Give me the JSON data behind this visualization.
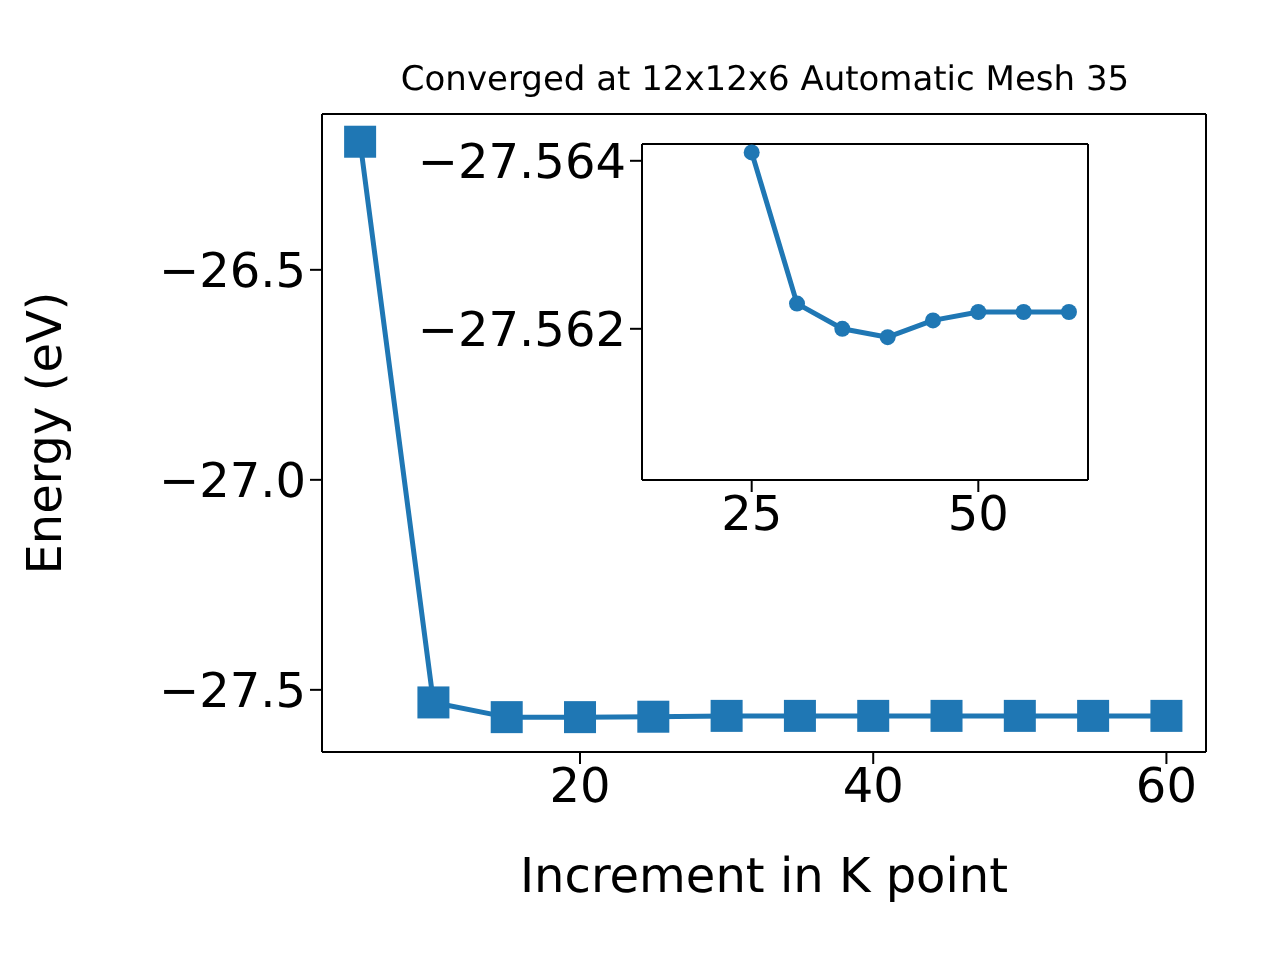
{
  "chart_data": [
    {
      "type": "line",
      "title": "Converged at 12x12x6 Automatic Mesh 35",
      "xlabel": "Increment in K point",
      "ylabel": "Energy (eV)",
      "x": [
        5,
        10,
        15,
        20,
        25,
        30,
        35,
        40,
        45,
        50,
        55,
        60
      ],
      "series": [
        {
          "color": "#1f77b4",
          "values": [
            -26.195,
            -27.53,
            -27.565,
            -27.565,
            -27.564,
            -27.562,
            -27.562,
            -27.562,
            -27.562,
            -27.562,
            -27.562,
            -27.562
          ]
        }
      ],
      "xlim": [
        2.4,
        62.7
      ],
      "xticks": [
        20,
        40,
        60
      ],
      "ylim": [
        -27.648,
        -26.129
      ],
      "yticks": [
        {
          "value": -27.5,
          "label": "−27.5"
        },
        {
          "value": -27.0,
          "label": "−27.0"
        },
        {
          "value": -26.5,
          "label": "−26.5"
        }
      ],
      "marker": "square",
      "grid": false
    },
    {
      "type": "line",
      "x": [
        25,
        30,
        35,
        40,
        45,
        50,
        55,
        60
      ],
      "series": [
        {
          "color": "#1f77b4",
          "values": [
            -27.5641,
            -27.5623,
            -27.562,
            -27.5619,
            -27.5621,
            -27.5622,
            -27.5622,
            -27.5622
          ]
        }
      ],
      "xlim": [
        12.9,
        62.1
      ],
      "xticks": [
        25,
        50
      ],
      "ylim": [
        -27.5602,
        -27.5642
      ],
      "yticks": [
        {
          "value": -27.564,
          "label": "−27.564"
        },
        {
          "value": -27.562,
          "label": "−27.562"
        }
      ],
      "marker": "circle",
      "grid": false
    }
  ]
}
